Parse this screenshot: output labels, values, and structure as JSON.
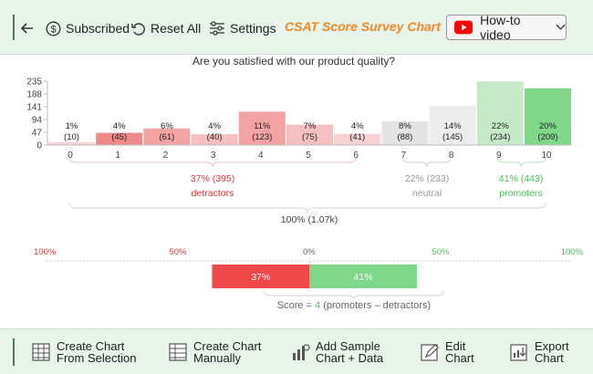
{
  "toolbar": {
    "subscribed_label": "Subscribed",
    "reset_label": "Reset All",
    "settings_label": "Settings",
    "app_title": "CSAT Score Survey Chart",
    "howto_label": "How-to video"
  },
  "chart_data": {
    "type": "bar",
    "title": "Are you satisfied with our product quality?",
    "categories": [
      "0",
      "1",
      "2",
      "3",
      "4",
      "5",
      "6",
      "7",
      "8",
      "9",
      "10"
    ],
    "values": [
      10,
      45,
      61,
      40,
      123,
      75,
      41,
      88,
      145,
      234,
      209
    ],
    "percent_labels": [
      "1%",
      "4%",
      "6%",
      "4%",
      "11%",
      "7%",
      "4%",
      "8%",
      "14%",
      "22%",
      "20%"
    ],
    "count_labels": [
      "(10)",
      "(45)",
      "(61)",
      "(40)",
      "(123)",
      "(75)",
      "(41)",
      "(88)",
      "(145)",
      "(234)",
      "(209)"
    ],
    "y_ticks": [
      0,
      47,
      94,
      141,
      188,
      235
    ],
    "ylim": [
      0,
      235
    ],
    "bar_colors": [
      "#f8d2d2",
      "#f08a8a",
      "#f3a3a3",
      "#f6c0c0",
      "#f3a3a3",
      "#f6c0c0",
      "#f8d2d2",
      "#e4e4e4",
      "#ececec",
      "#c6eac8",
      "#7fd88a"
    ],
    "groups": {
      "detractors": {
        "value_label": "37% (395)",
        "name": "detractors",
        "color": "#e23b3b"
      },
      "neutral": {
        "value_label": "22% (233)",
        "name": "neutral",
        "color": "#9a9a9a"
      },
      "promoters": {
        "value_label": "41% (443)",
        "name": "promoters",
        "color": "#4cbf5a"
      }
    },
    "total_label": "100% (1.07k)",
    "scale_labels": [
      "100%",
      "50%",
      "0%",
      "50%",
      "100%"
    ],
    "scale_colors": [
      "#e23b3b",
      "#e23b3b",
      "#666666",
      "#4cbf5a",
      "#4cbf5a"
    ],
    "score_bar": {
      "detractor_pct": 37,
      "detractor_label": "37%",
      "detractor_color": "#f04848",
      "promoter_pct": 41,
      "promoter_label": "41%",
      "promoter_color": "#7fd88a"
    },
    "score_text": {
      "prefix": "Score = ",
      "value": "4",
      "suffix": " (promoters  –  detractors)"
    }
  },
  "footer": {
    "create_selection": [
      "Create Chart",
      "From Selection"
    ],
    "create_manual": [
      "Create Chart",
      "Manually"
    ],
    "add_sample": [
      "Add Sample",
      "Chart + Data"
    ],
    "edit_chart": [
      "Edit",
      "Chart"
    ],
    "export_chart": [
      "Export",
      "Chart"
    ]
  },
  "icons": {
    "back": "arrow-left-icon",
    "subscribed": "dollar-circle-icon",
    "reset": "undo-icon",
    "settings": "sliders-icon",
    "youtube": "youtube-icon",
    "chevron": "chevron-down-icon"
  }
}
